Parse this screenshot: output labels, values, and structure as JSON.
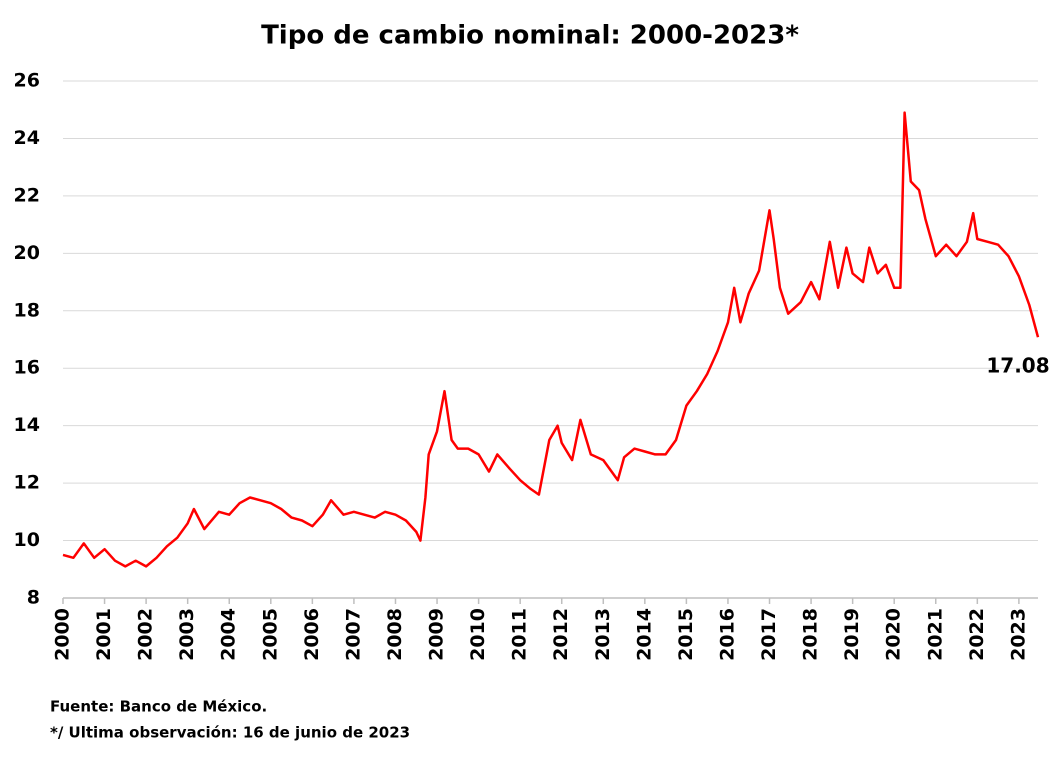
{
  "chart_data": {
    "type": "line",
    "title": "Tipo de cambio nominal: 2000-2023*",
    "x": [
      2000.0,
      2000.25,
      2000.5,
      2000.75,
      2001.0,
      2001.25,
      2001.5,
      2001.75,
      2002.0,
      2002.25,
      2002.5,
      2002.75,
      2003.0,
      2003.15,
      2003.4,
      2003.75,
      2004.0,
      2004.25,
      2004.5,
      2004.75,
      2005.0,
      2005.25,
      2005.5,
      2005.75,
      2006.0,
      2006.25,
      2006.45,
      2006.75,
      2007.0,
      2007.25,
      2007.5,
      2007.75,
      2008.0,
      2008.25,
      2008.5,
      2008.6,
      2008.72,
      2008.8,
      2009.0,
      2009.18,
      2009.35,
      2009.5,
      2009.75,
      2010.0,
      2010.25,
      2010.45,
      2010.75,
      2011.0,
      2011.25,
      2011.45,
      2011.7,
      2011.9,
      2012.0,
      2012.25,
      2012.45,
      2012.7,
      2013.0,
      2013.25,
      2013.35,
      2013.5,
      2013.75,
      2014.0,
      2014.25,
      2014.5,
      2014.75,
      2015.0,
      2015.25,
      2015.5,
      2015.75,
      2016.0,
      2016.15,
      2016.3,
      2016.5,
      2016.75,
      2017.0,
      2017.1,
      2017.25,
      2017.45,
      2017.75,
      2018.0,
      2018.2,
      2018.45,
      2018.65,
      2018.85,
      2019.0,
      2019.25,
      2019.4,
      2019.6,
      2019.8,
      2020.0,
      2020.15,
      2020.25,
      2020.4,
      2020.6,
      2020.75,
      2021.0,
      2021.25,
      2021.5,
      2021.75,
      2021.9,
      2022.0,
      2022.25,
      2022.5,
      2022.75,
      2023.0,
      2023.25,
      2023.46
    ],
    "series": [
      {
        "color": "#ff0000",
        "values": [
          9.5,
          9.4,
          9.9,
          9.4,
          9.7,
          9.3,
          9.1,
          9.3,
          9.1,
          9.4,
          9.8,
          10.1,
          10.6,
          11.1,
          10.4,
          11.0,
          10.9,
          11.3,
          11.5,
          11.4,
          11.3,
          11.1,
          10.8,
          10.7,
          10.5,
          10.9,
          11.4,
          10.9,
          11.0,
          10.9,
          10.8,
          11.0,
          10.9,
          10.7,
          10.3,
          10.0,
          11.5,
          13.0,
          13.8,
          15.2,
          13.5,
          13.2,
          13.2,
          13.0,
          12.4,
          13.0,
          12.5,
          12.1,
          11.8,
          11.6,
          13.5,
          14.0,
          13.4,
          12.8,
          14.2,
          13.0,
          12.8,
          12.3,
          12.1,
          12.9,
          13.2,
          13.1,
          13.0,
          13.0,
          13.5,
          14.7,
          15.2,
          15.8,
          16.6,
          17.6,
          18.8,
          17.6,
          18.6,
          19.4,
          21.5,
          20.5,
          18.8,
          17.9,
          18.3,
          19.0,
          18.4,
          20.4,
          18.8,
          20.2,
          19.3,
          19.0,
          20.2,
          19.3,
          19.6,
          18.8,
          18.8,
          24.9,
          22.5,
          22.2,
          21.2,
          19.9,
          20.3,
          19.9,
          20.4,
          21.4,
          20.5,
          20.4,
          20.3,
          19.9,
          19.2,
          18.2,
          17.08
        ]
      }
    ],
    "xlim": [
      2000,
      2023.46
    ],
    "xticks": [
      2000,
      2001,
      2002,
      2003,
      2004,
      2005,
      2006,
      2007,
      2008,
      2009,
      2010,
      2011,
      2012,
      2013,
      2014,
      2015,
      2016,
      2017,
      2018,
      2019,
      2020,
      2021,
      2022,
      2023
    ],
    "ylim": [
      8,
      26
    ],
    "yticks": [
      8,
      10,
      12,
      14,
      16,
      18,
      20,
      22,
      24,
      26
    ],
    "grid": true
  },
  "footnotes": [
    "Fuente: Banco de México.",
    "*/ Ultima observación: 16 de junio de 2023"
  ]
}
